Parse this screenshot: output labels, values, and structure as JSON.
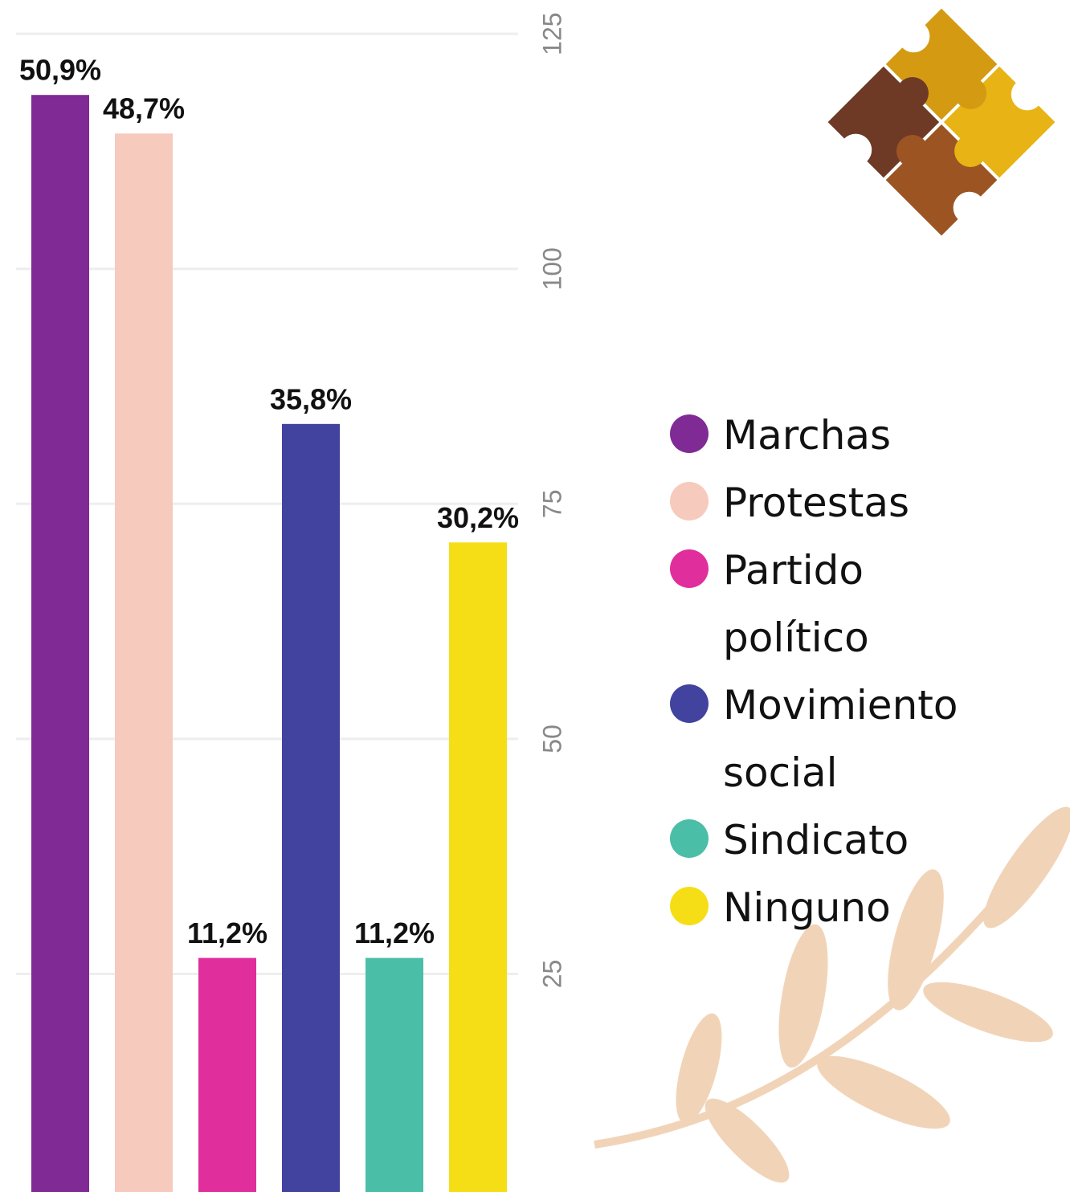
{
  "chart_data": {
    "type": "bar",
    "categories": [
      "Marchas",
      "Protestas",
      "Partido político",
      "Movimiento social",
      "Sindicato",
      "Ninguno"
    ],
    "values": [
      118.5,
      114.4,
      26.7,
      83.5,
      26.7,
      70.9
    ],
    "data_labels": [
      "50,9%",
      "48,7%",
      "11,2%",
      "35,8%",
      "11,2%",
      "30,2%"
    ],
    "colors": [
      "#7f2a95",
      "#f6cabd",
      "#e02e9c",
      "#42429f",
      "#4bbea7",
      "#f6de17"
    ],
    "ylim": [
      1.8,
      128.6
    ],
    "yticks": [
      25,
      50,
      75,
      100,
      125
    ],
    "grid": true
  }
}
